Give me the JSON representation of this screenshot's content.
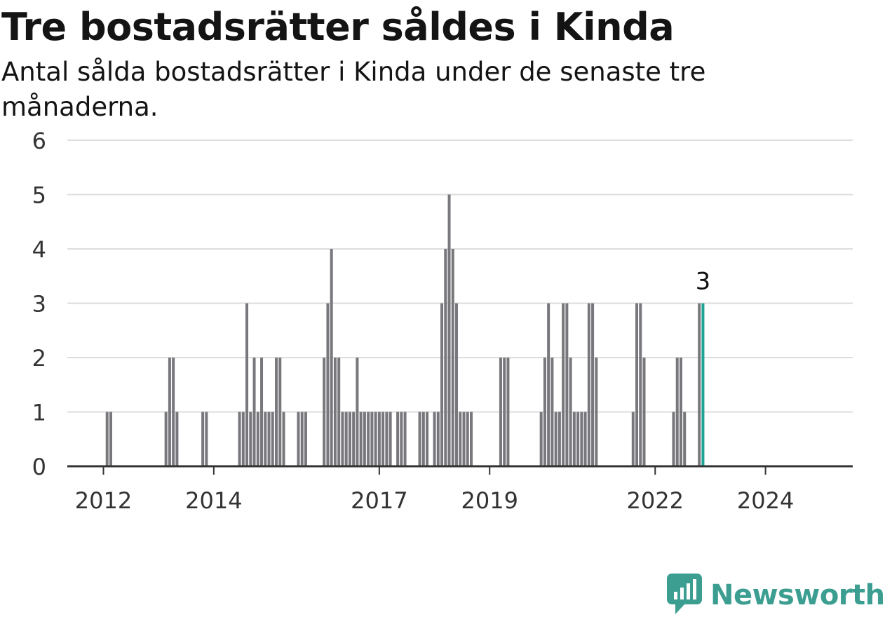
{
  "title": "Tre bostadsrätter såldes i Kinda",
  "subtitle": "Antal sålda bostadsrätter i Kinda under de senaste tre månaderna.",
  "logo": "Newsworthy",
  "colors": {
    "bar": "#78777c",
    "highlight": "#1fa394",
    "grid": "#dddddd",
    "axis": "#333333",
    "brand": "#3b9e91"
  },
  "chart_data": {
    "type": "bar",
    "ylim": [
      0,
      6
    ],
    "yticks": [
      0,
      1,
      2,
      3,
      4,
      5,
      6
    ],
    "xticks": [
      "2012",
      "2014",
      "2017",
      "2019",
      "2022",
      "2024"
    ],
    "grid": true,
    "highlight_label": "3",
    "series": [
      {
        "values": [
          0,
          1,
          1,
          0,
          0,
          0,
          0,
          0,
          0,
          0,
          0,
          0,
          0,
          0,
          0,
          0,
          0,
          1,
          2,
          2,
          1,
          0,
          0,
          0,
          0,
          0,
          0,
          1,
          1,
          0,
          0,
          0,
          0,
          0,
          0,
          0,
          0,
          1,
          1,
          3,
          1,
          2,
          1,
          2,
          1,
          1,
          1,
          2,
          2,
          1,
          0,
          0,
          0,
          1,
          1,
          1,
          0,
          0,
          0,
          0,
          2,
          3,
          4,
          2,
          2,
          1,
          1,
          1,
          1,
          2,
          1,
          1,
          1,
          1,
          1,
          1,
          1,
          1,
          1,
          0,
          1,
          1,
          1,
          0,
          0,
          0,
          1,
          1,
          1,
          0,
          1,
          1,
          3,
          4,
          5,
          4,
          3,
          1,
          1,
          1,
          1,
          0,
          0,
          0,
          0,
          0,
          0,
          0,
          2,
          2,
          2,
          0,
          0,
          0,
          0,
          0,
          0,
          0,
          0,
          1,
          2,
          3,
          2,
          1,
          1,
          3,
          3,
          2,
          1,
          1,
          1,
          1,
          3,
          3,
          2,
          0,
          0,
          0,
          0,
          0,
          0,
          0,
          0,
          0,
          1,
          3,
          3,
          2,
          0,
          0,
          0,
          0,
          0,
          0,
          0,
          1,
          2,
          2,
          1,
          0,
          0,
          0,
          3,
          3
        ]
      }
    ]
  }
}
